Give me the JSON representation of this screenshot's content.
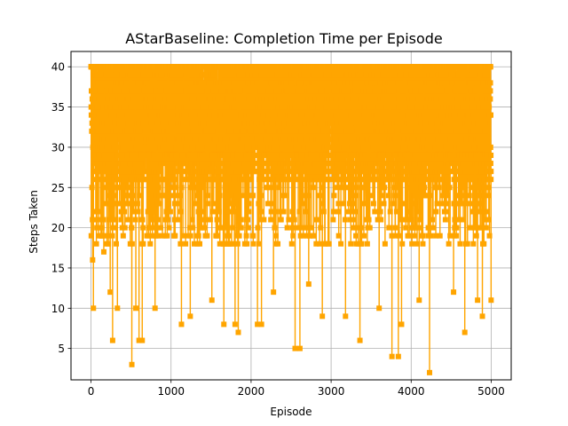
{
  "chart_data": {
    "type": "line",
    "title": "AStarBaseline: Completion Time per Episode",
    "xlabel": "Episode",
    "ylabel": "Steps Taken",
    "xlim": [
      -250,
      5250
    ],
    "ylim": [
      1.1,
      41.9
    ],
    "xticks": [
      0,
      1000,
      2000,
      3000,
      4000,
      5000
    ],
    "yticks": [
      5,
      10,
      15,
      20,
      25,
      30,
      35,
      40
    ],
    "grid": true,
    "marker": "square",
    "series": [
      {
        "color": "#ffa500",
        "episode_count": 5000,
        "value_range": [
          2,
          40
        ],
        "notable_minima": [
          {
            "x": 20,
            "y": 16
          },
          {
            "x": 30,
            "y": 10
          },
          {
            "x": 160,
            "y": 17
          },
          {
            "x": 240,
            "y": 12
          },
          {
            "x": 270,
            "y": 6
          },
          {
            "x": 330,
            "y": 10
          },
          {
            "x": 510,
            "y": 3
          },
          {
            "x": 560,
            "y": 10
          },
          {
            "x": 600,
            "y": 6
          },
          {
            "x": 640,
            "y": 6
          },
          {
            "x": 800,
            "y": 10
          },
          {
            "x": 1130,
            "y": 8
          },
          {
            "x": 1240,
            "y": 9
          },
          {
            "x": 1510,
            "y": 11
          },
          {
            "x": 1660,
            "y": 8
          },
          {
            "x": 1800,
            "y": 8
          },
          {
            "x": 1840,
            "y": 7
          },
          {
            "x": 2080,
            "y": 8
          },
          {
            "x": 2130,
            "y": 8
          },
          {
            "x": 2280,
            "y": 12
          },
          {
            "x": 2550,
            "y": 5
          },
          {
            "x": 2610,
            "y": 5
          },
          {
            "x": 2720,
            "y": 13
          },
          {
            "x": 2890,
            "y": 9
          },
          {
            "x": 3180,
            "y": 9
          },
          {
            "x": 3360,
            "y": 6
          },
          {
            "x": 3600,
            "y": 10
          },
          {
            "x": 3760,
            "y": 4
          },
          {
            "x": 3840,
            "y": 4
          },
          {
            "x": 3880,
            "y": 8
          },
          {
            "x": 4100,
            "y": 11
          },
          {
            "x": 4230,
            "y": 2
          },
          {
            "x": 4530,
            "y": 12
          },
          {
            "x": 4670,
            "y": 7
          },
          {
            "x": 4830,
            "y": 11
          },
          {
            "x": 4890,
            "y": 9
          },
          {
            "x": 5000,
            "y": 11
          }
        ]
      }
    ]
  }
}
